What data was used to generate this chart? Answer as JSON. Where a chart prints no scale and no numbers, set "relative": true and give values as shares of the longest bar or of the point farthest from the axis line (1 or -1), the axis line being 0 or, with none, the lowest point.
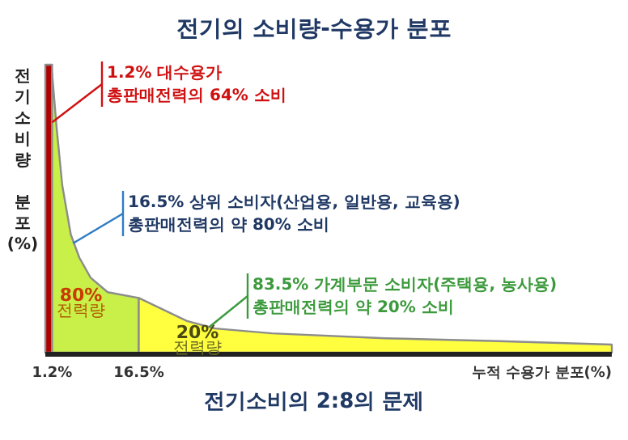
{
  "chart_data": {
    "type": "area",
    "title": "전기의 소비량-수용가 분포",
    "xlabel": "누적 수용가 분포(%)",
    "ylabel": "전기소비량 분포(%)",
    "relative": true,
    "xlim": [
      0,
      100
    ],
    "xticks": [
      {
        "value": 1.2,
        "label": "1.2%"
      },
      {
        "value": 16.5,
        "label": "16.5%"
      }
    ],
    "series": [
      {
        "color": "#b00000",
        "x": [
          0,
          1.2
        ],
        "values": [
          1,
          1
        ]
      },
      {
        "color": "#c8f048",
        "x": [
          1.2,
          2,
          3,
          4.5,
          6,
          8,
          11,
          16.5
        ],
        "values": [
          0.97,
          0.78,
          0.58,
          0.41,
          0.33,
          0.26,
          0.21,
          0.19
        ]
      },
      {
        "color": "#ffff40",
        "x": [
          16.5,
          25,
          30,
          40,
          60,
          80,
          100
        ],
        "values": [
          0.19,
          0.11,
          0.084,
          0.067,
          0.05,
          0.04,
          0.028
        ]
      }
    ],
    "annotations": [
      {
        "text": "1.2% 대수용가\n총판매전력의 64% 소비",
        "x": 1.2,
        "y": 0.8
      },
      {
        "text": "16.5% 상위 소비자(산업용, 일반용, 교육용)\n총판매전력의 약 80% 소비",
        "x": 4.9,
        "y": 0.38
      },
      {
        "text": "83.5% 가계부문 소비자(주택용, 농사용)\n총판매전력의 약 20% 소비",
        "x": 29,
        "y": 0.09
      },
      "80%\n전력량",
      "20%\n전력량",
      "전기소비의 2:8의 문제"
    ]
  }
}
